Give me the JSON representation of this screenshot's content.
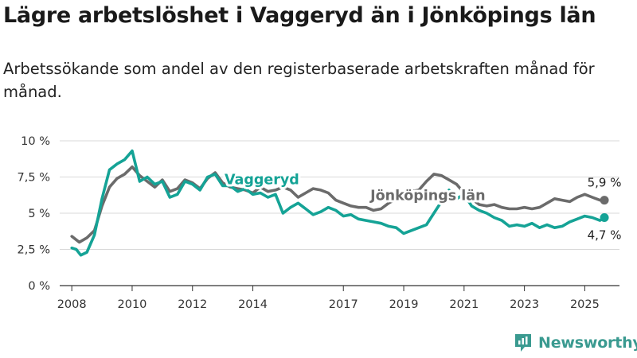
{
  "title": "Lägre arbetslöshet i Vaggeryd än i Jönköpings län",
  "subtitle": "Arbetssökande som andel av den registerbaserade arbetskraften månad för månad.",
  "brand": "Newsworthy",
  "colors": {
    "vaggeryd": "#15a396",
    "lan": "#6b6b6b",
    "grid": "#d9d9d9",
    "axis": "#333333"
  },
  "chart_data": {
    "type": "line",
    "title": "Lägre arbetslöshet i Vaggeryd än i Jönköpings län",
    "xlabel": "",
    "ylabel": "",
    "xlim": [
      2007.6,
      2026.15
    ],
    "ylim": [
      0,
      10
    ],
    "yticks": [
      0,
      2.5,
      5,
      7.5,
      10
    ],
    "ytick_labels": [
      "0 %",
      "2,5 %",
      "5 %",
      "7,5 %",
      "10 %"
    ],
    "xticks": [
      2008,
      2010,
      2012,
      2014,
      2017,
      2019,
      2021,
      2023,
      2025
    ],
    "xtick_labels": [
      "2008",
      "2010",
      "2012",
      "2014",
      "2017",
      "2019",
      "2021",
      "2023",
      "2025"
    ],
    "grid": "horizontal",
    "series": [
      {
        "name": "Jönköpings län",
        "color": "#6b6b6b",
        "end_label": "5,9 %",
        "x": [
          2008.0,
          2008.25,
          2008.5,
          2008.75,
          2009.0,
          2009.25,
          2009.5,
          2009.75,
          2010.0,
          2010.25,
          2010.5,
          2010.75,
          2011.0,
          2011.25,
          2011.5,
          2011.75,
          2012.0,
          2012.25,
          2012.5,
          2012.75,
          2013.0,
          2013.25,
          2013.5,
          2013.75,
          2014.0,
          2014.25,
          2014.5,
          2014.75,
          2015.0,
          2015.25,
          2015.5,
          2015.75,
          2016.0,
          2016.25,
          2016.5,
          2016.75,
          2017.0,
          2017.25,
          2017.5,
          2017.75,
          2018.0,
          2018.25,
          2018.5,
          2018.75,
          2019.0,
          2019.25,
          2019.5,
          2019.75,
          2020.0,
          2020.25,
          2020.5,
          2020.75,
          2021.0,
          2021.25,
          2021.5,
          2021.75,
          2022.0,
          2022.25,
          2022.5,
          2022.75,
          2023.0,
          2023.25,
          2023.5,
          2023.75,
          2024.0,
          2024.25,
          2024.5,
          2024.75,
          2025.0,
          2025.25,
          2025.5,
          2025.65
        ],
        "values": [
          3.4,
          3.0,
          3.3,
          3.8,
          5.5,
          6.8,
          7.4,
          7.7,
          8.2,
          7.6,
          7.2,
          6.8,
          7.3,
          6.5,
          6.7,
          7.3,
          7.1,
          6.7,
          7.4,
          7.8,
          7.1,
          6.8,
          6.7,
          6.6,
          6.4,
          6.8,
          6.5,
          6.6,
          6.8,
          6.6,
          6.1,
          6.4,
          6.7,
          6.6,
          6.4,
          5.9,
          5.7,
          5.5,
          5.4,
          5.4,
          5.2,
          5.3,
          5.7,
          6.0,
          6.3,
          6.5,
          6.6,
          7.2,
          7.7,
          7.6,
          7.3,
          7.0,
          6.4,
          6.0,
          5.6,
          5.5,
          5.6,
          5.4,
          5.3,
          5.3,
          5.4,
          5.3,
          5.4,
          5.7,
          6.0,
          5.9,
          5.8,
          6.1,
          6.3,
          6.1,
          5.9,
          5.9
        ]
      },
      {
        "name": "Vaggeryd",
        "color": "#15a396",
        "end_label": "4,7 %",
        "x": [
          2008.0,
          2008.15,
          2008.3,
          2008.5,
          2008.75,
          2009.0,
          2009.25,
          2009.5,
          2009.75,
          2010.0,
          2010.25,
          2010.5,
          2010.75,
          2011.0,
          2011.25,
          2011.5,
          2011.75,
          2012.0,
          2012.25,
          2012.5,
          2012.75,
          2013.0,
          2013.25,
          2013.5,
          2013.75,
          2014.0,
          2014.25,
          2014.5,
          2014.75,
          2015.0,
          2015.25,
          2015.5,
          2015.75,
          2016.0,
          2016.25,
          2016.5,
          2016.75,
          2017.0,
          2017.25,
          2017.5,
          2017.75,
          2018.0,
          2018.25,
          2018.5,
          2018.75,
          2019.0,
          2019.25,
          2019.5,
          2019.75,
          2020.0,
          2020.25,
          2020.5,
          2020.75,
          2021.0,
          2021.25,
          2021.5,
          2021.75,
          2022.0,
          2022.25,
          2022.5,
          2022.75,
          2023.0,
          2023.25,
          2023.5,
          2023.75,
          2024.0,
          2024.25,
          2024.5,
          2024.75,
          2025.0,
          2025.25,
          2025.5,
          2025.65
        ],
        "values": [
          2.6,
          2.5,
          2.1,
          2.3,
          3.5,
          6.0,
          8.0,
          8.4,
          8.7,
          9.3,
          7.2,
          7.5,
          7.0,
          7.2,
          6.1,
          6.3,
          7.2,
          7.0,
          6.6,
          7.5,
          7.7,
          6.9,
          6.9,
          6.5,
          6.7,
          6.3,
          6.4,
          6.1,
          6.3,
          5.0,
          5.4,
          5.7,
          5.3,
          4.9,
          5.1,
          5.4,
          5.2,
          4.8,
          4.9,
          4.6,
          4.5,
          4.4,
          4.3,
          4.1,
          4.0,
          3.6,
          3.8,
          4.0,
          4.2,
          5.0,
          5.8,
          6.6,
          6.0,
          6.3,
          5.5,
          5.2,
          5.0,
          4.7,
          4.5,
          4.1,
          4.2,
          4.1,
          4.3,
          4.0,
          4.2,
          4.0,
          4.1,
          4.4,
          4.6,
          4.8,
          4.7,
          4.5,
          4.7
        ]
      }
    ],
    "annotations": [
      {
        "text": "Vaggeryd",
        "series": "Vaggeryd",
        "x": 2014.3,
        "y": 7.0
      },
      {
        "text": "Jönköpings län",
        "series": "Jönköpings län",
        "x": 2019.8,
        "y": 5.9
      }
    ]
  }
}
